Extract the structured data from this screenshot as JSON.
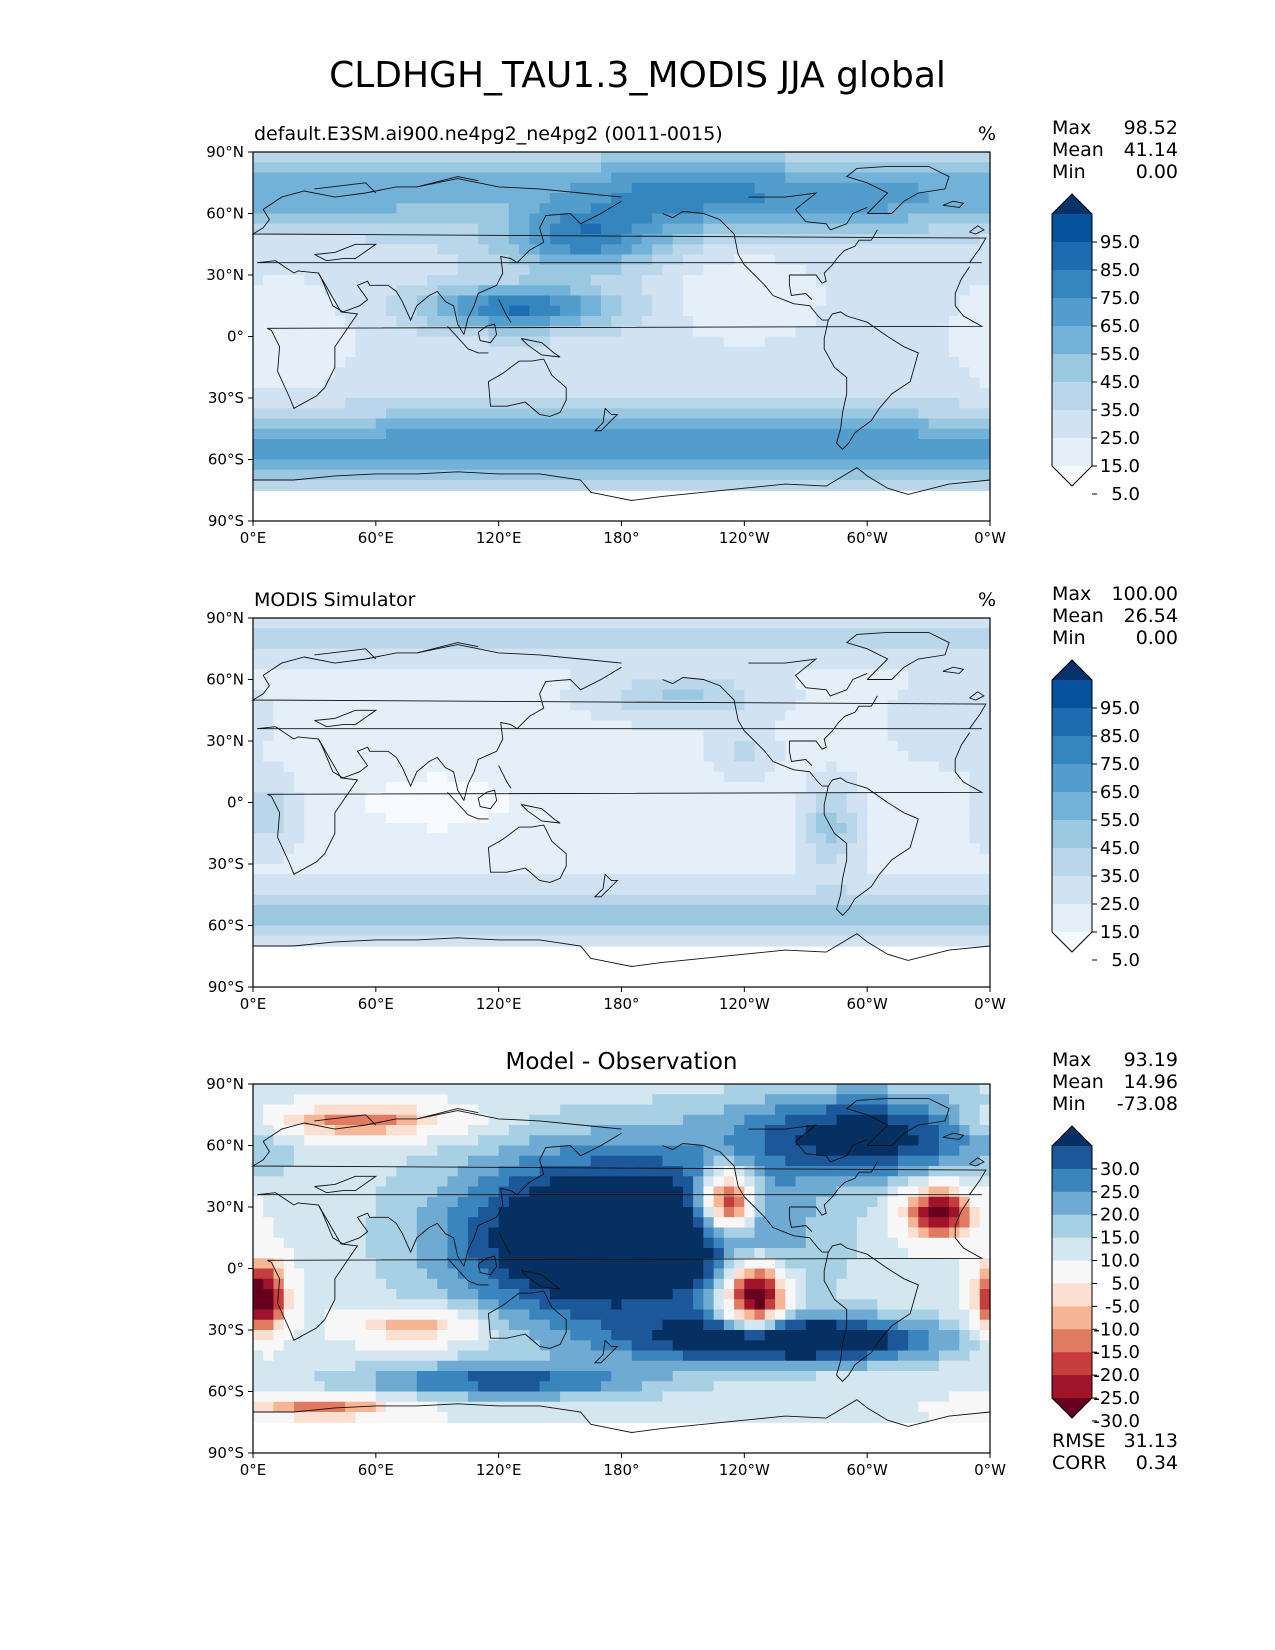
{
  "figure": {
    "title": "CLDHGH_TAU1.3_MODIS JJA global"
  },
  "axes": {
    "lat_ticks": [
      "90°N",
      "60°N",
      "30°N",
      "0°",
      "30°S",
      "60°S",
      "90°S"
    ],
    "lon_ticks": [
      "0°E",
      "60°E",
      "120°E",
      "180°",
      "120°W",
      "60°W",
      "0°W"
    ]
  },
  "colors": {
    "blues": [
      "#f7fbff",
      "#e4eff9",
      "#d1e3f3",
      "#bad6eb",
      "#9ac8e0",
      "#73b2d8",
      "#529dcc",
      "#3585bf",
      "#1d6cb1",
      "#08519c",
      "#08306b"
    ],
    "diverging": [
      "#67001f",
      "#a1132a",
      "#c53e3d",
      "#e07b61",
      "#f6b595",
      "#fbe0d1",
      "#f7f7f7",
      "#d4e7f1",
      "#a8d0e4",
      "#6eaad1",
      "#3a85bd",
      "#1b5799",
      "#053061"
    ]
  },
  "panels": [
    {
      "left_title": "default.E3SM.ai900.ne4pg2_ne4pg2 (0011-0015)",
      "right_title": "%",
      "center_title": "",
      "stats": [
        {
          "label": "Max",
          "value": "98.52"
        },
        {
          "label": "Mean",
          "value": "41.14"
        },
        {
          "label": "Min",
          "value": "0.00"
        }
      ],
      "colorbar_ticks": [
        "95.0",
        "85.0",
        "75.0",
        "65.0",
        "55.0",
        "45.0",
        "35.0",
        "25.0",
        "15.0",
        "5.0"
      ],
      "field": "model"
    },
    {
      "left_title": "MODIS Simulator",
      "right_title": "%",
      "center_title": "",
      "stats": [
        {
          "label": "Max",
          "value": "100.00"
        },
        {
          "label": "Mean",
          "value": "26.54"
        },
        {
          "label": "Min",
          "value": "0.00"
        }
      ],
      "colorbar_ticks": [
        "95.0",
        "85.0",
        "75.0",
        "65.0",
        "55.0",
        "45.0",
        "35.0",
        "25.0",
        "15.0",
        "5.0"
      ],
      "field": "obs"
    },
    {
      "left_title": "",
      "right_title": "",
      "center_title": "Model - Observation",
      "stats": [
        {
          "label": "Max",
          "value": "93.19"
        },
        {
          "label": "Mean",
          "value": "14.96"
        },
        {
          "label": "Min",
          "value": "-73.08"
        }
      ],
      "colorbar_ticks": [
        "30.0",
        "25.0",
        "20.0",
        "15.0",
        "10.0",
        "5.0",
        "-5.0",
        "-10.0",
        "-15.0",
        "-20.0",
        "-25.0",
        "-30.0"
      ],
      "extra_stats": [
        {
          "label": "RMSE",
          "value": "31.13"
        },
        {
          "label": "CORR",
          "value": "0.34"
        }
      ],
      "field": "diff"
    }
  ]
}
